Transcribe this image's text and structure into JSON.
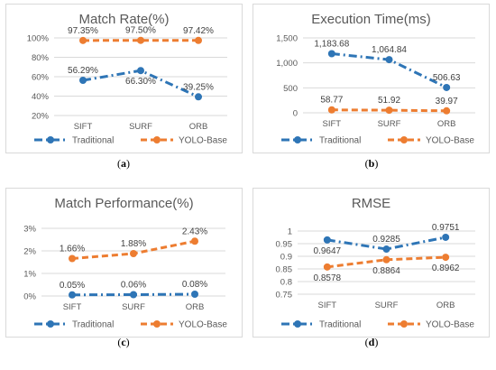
{
  "colors": {
    "traditional": "#2e75b6",
    "yolo": "#ed7d31"
  },
  "chart_data": [
    {
      "type": "line",
      "title": "Match Rate(%)",
      "categories": [
        "SIFT",
        "SURF",
        "ORB"
      ],
      "ylim": [
        20,
        100
      ],
      "yticks": [
        20,
        40,
        60,
        80,
        100
      ],
      "ytick_labels": [
        "20%",
        "40%",
        "60%",
        "80%",
        "100%"
      ],
      "grid": true,
      "legend_position": "bottom",
      "series": [
        {
          "name": "Traditional",
          "values": [
            56.29,
            66.3,
            39.25
          ],
          "labels": [
            "56.29%",
            "66.30%",
            "39.25%"
          ],
          "label_pos": [
            "above",
            "below",
            "above"
          ]
        },
        {
          "name": "YOLO-Base",
          "values": [
            97.35,
            97.5,
            97.42
          ],
          "labels": [
            "97.35%",
            "97.50%",
            "97.42%"
          ],
          "label_pos": [
            "above",
            "above",
            "above"
          ]
        }
      ],
      "caption": "a"
    },
    {
      "type": "line",
      "title": "Execution Time(ms)",
      "categories": [
        "SIFT",
        "SURF",
        "ORB"
      ],
      "ylim": [
        0,
        1500
      ],
      "yticks": [
        0,
        500,
        1000,
        1500
      ],
      "ytick_labels": [
        "0",
        "500",
        "1,000",
        "1,500"
      ],
      "grid": true,
      "legend_position": "bottom",
      "series": [
        {
          "name": "Traditional",
          "values": [
            1183.68,
            1064.84,
            506.63
          ],
          "labels": [
            "1,183.68",
            "1,064.84",
            "506.63"
          ],
          "label_pos": [
            "above",
            "above",
            "above"
          ]
        },
        {
          "name": "YOLO-Base",
          "values": [
            58.77,
            51.92,
            39.97
          ],
          "labels": [
            "58.77",
            "51.92",
            "39.97"
          ],
          "label_pos": [
            "above",
            "above",
            "above"
          ]
        }
      ],
      "caption": "b"
    },
    {
      "type": "line",
      "title": "Match Performance(%)",
      "categories": [
        "SIFT",
        "SURF",
        "ORB"
      ],
      "ylim": [
        0,
        3
      ],
      "yticks": [
        0,
        1,
        2,
        3
      ],
      "ytick_labels": [
        "0%",
        "1%",
        "2%",
        "3%"
      ],
      "grid": true,
      "legend_position": "bottom",
      "series": [
        {
          "name": "Traditional",
          "values": [
            0.05,
            0.06,
            0.08
          ],
          "labels": [
            "0.05%",
            "0.06%",
            "0.08%"
          ],
          "label_pos": [
            "above",
            "above",
            "above"
          ]
        },
        {
          "name": "YOLO-Base",
          "values": [
            1.66,
            1.88,
            2.43
          ],
          "labels": [
            "1.66%",
            "1.88%",
            "2.43%"
          ],
          "label_pos": [
            "above",
            "above",
            "above"
          ]
        }
      ],
      "caption": "c"
    },
    {
      "type": "line",
      "title": "RMSE",
      "categories": [
        "SIFT",
        "SURF",
        "ORB"
      ],
      "ylim": [
        0.75,
        1
      ],
      "yticks": [
        0.75,
        0.8,
        0.85,
        0.9,
        0.95,
        1
      ],
      "ytick_labels": [
        "0.75",
        "0.8",
        "0.85",
        "0.9",
        "0.95",
        "1"
      ],
      "grid": true,
      "legend_position": "bottom",
      "series": [
        {
          "name": "Traditional",
          "values": [
            0.9647,
            0.9285,
            0.9751
          ],
          "labels": [
            "0.9647",
            "0.9285",
            "0.9751"
          ],
          "label_pos": [
            "below",
            "above",
            "above"
          ]
        },
        {
          "name": "YOLO-Base",
          "values": [
            0.8578,
            0.8864,
            0.8962
          ],
          "labels": [
            "0.8578",
            "0.8864",
            "0.8962"
          ],
          "label_pos": [
            "below",
            "below",
            "below"
          ]
        }
      ],
      "caption": "d"
    }
  ]
}
